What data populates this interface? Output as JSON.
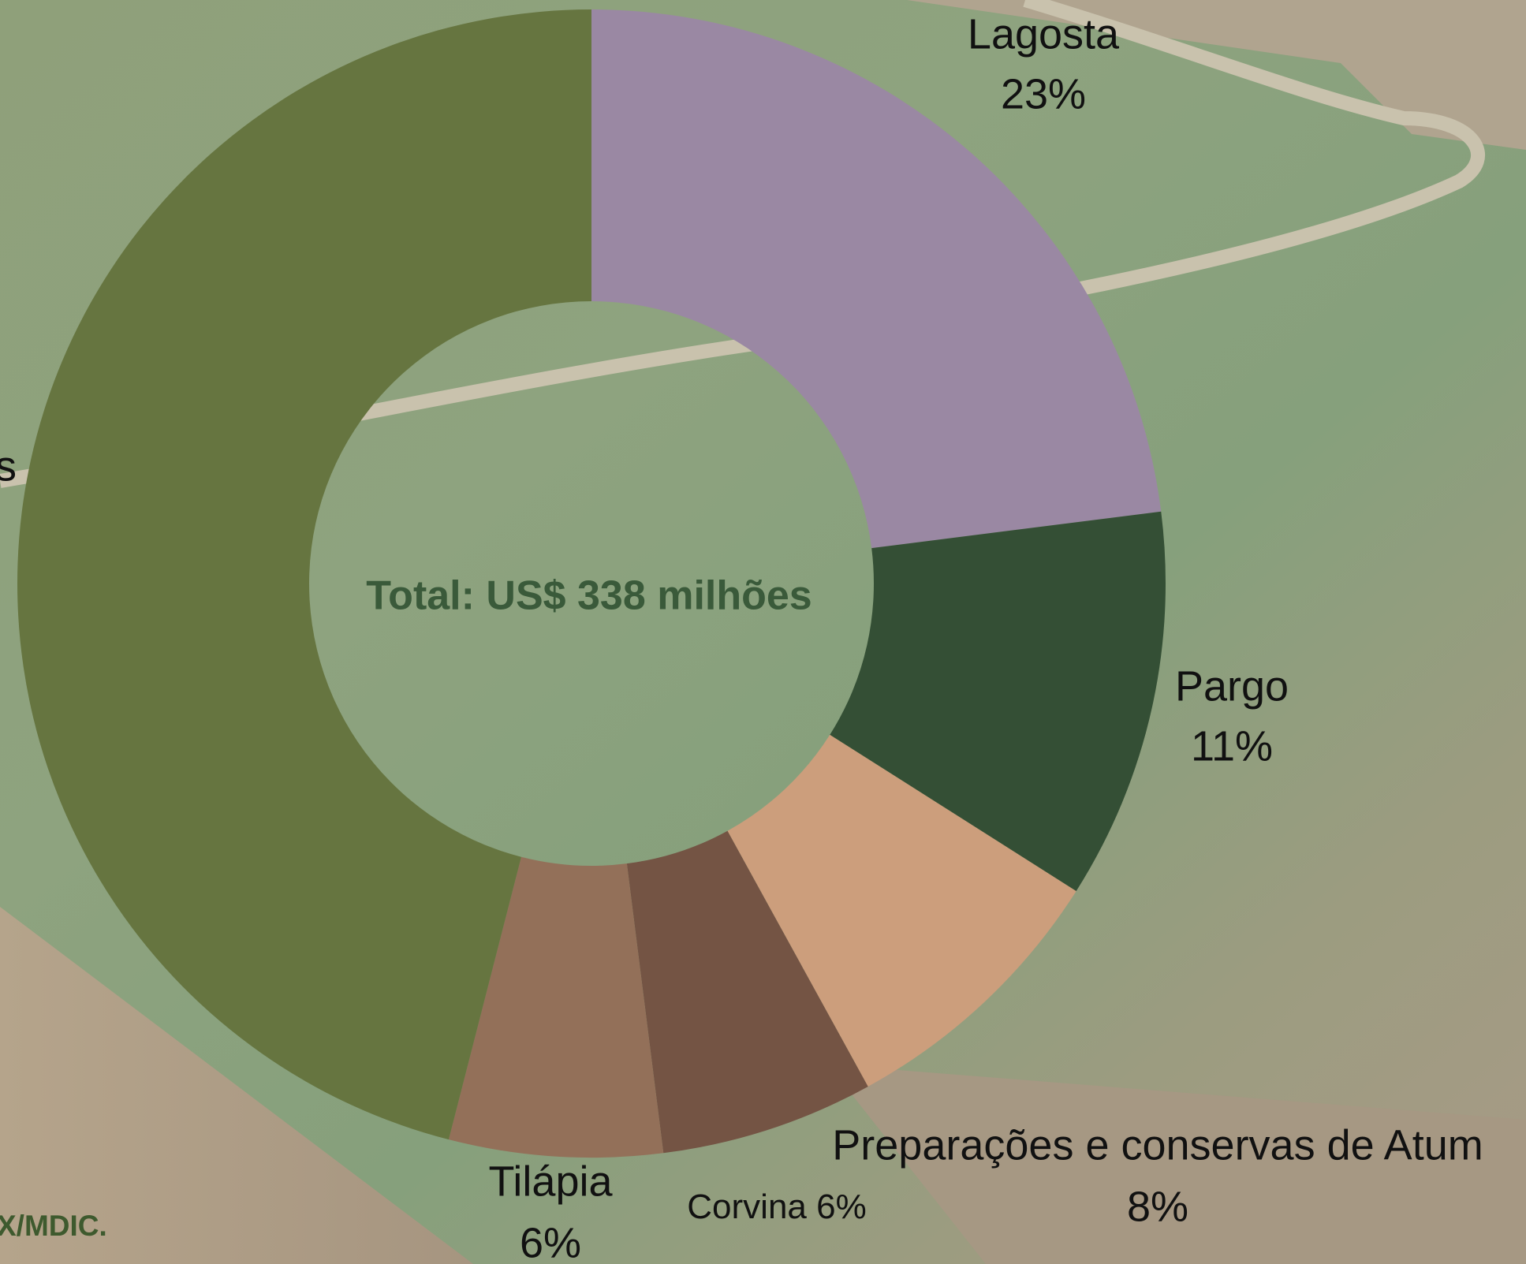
{
  "chart_data": {
    "type": "donut",
    "center_text": "Total: US$ 338 milhões",
    "categories": [
      "Lagosta",
      "Pargo",
      "Preparações e conservas de Atum",
      "Corvina",
      "Tilápia",
      null
    ],
    "values": [
      23,
      11,
      8,
      6,
      6,
      46
    ],
    "value_labels": [
      "23%",
      "11%",
      "8%",
      "6%",
      "6%",
      null
    ],
    "colors": [
      "#9a88a3",
      "#344f35",
      "#cc9e7c",
      "#745444",
      "#937059",
      "#667540"
    ],
    "clipped_label": "s",
    "source": "X/MDIC."
  }
}
